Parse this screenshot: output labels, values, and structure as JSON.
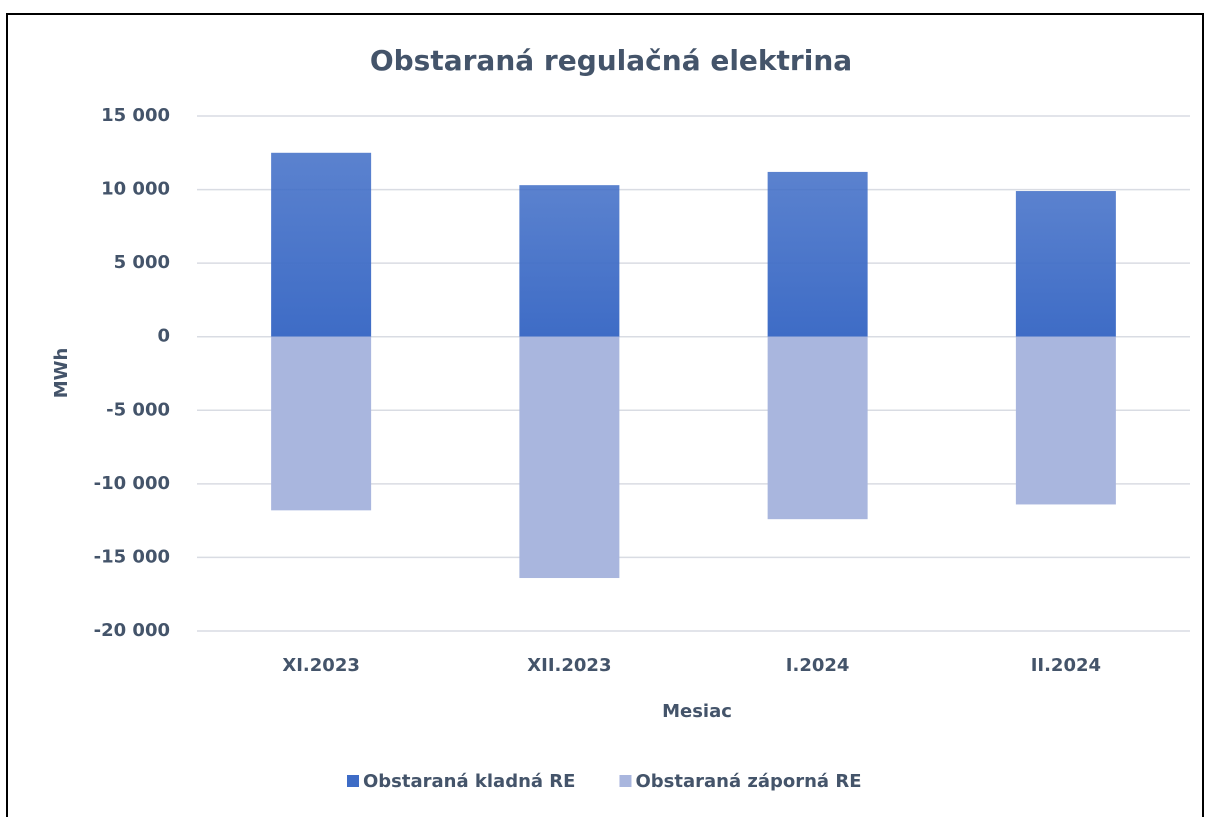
{
  "chart_data": {
    "type": "bar",
    "stacked": true,
    "title": "Obstaraná regulačná elektrina",
    "x_label": "Mesiac",
    "y_label": "MWh",
    "categories": [
      "XI.2023",
      "XII.2023",
      "I.2024",
      "II.2024"
    ],
    "series": [
      {
        "name": "Obstaraná kladná RE",
        "color": "#3e6cc6",
        "values": [
          12500,
          10300,
          11200,
          9900
        ]
      },
      {
        "name": "Obstaraná záporná RE",
        "color": "#a9b6de",
        "values": [
          -11800,
          -16400,
          -12400,
          -11400
        ]
      }
    ],
    "ylim": [
      -20000,
      15000
    ],
    "yticks": [
      {
        "value": -20000,
        "label": "-20 000"
      },
      {
        "value": -15000,
        "label": "-15 000"
      },
      {
        "value": -10000,
        "label": "-10 000"
      },
      {
        "value": -5000,
        "label": "-5 000"
      },
      0,
      {
        "value": 5000,
        "label": "5 000"
      },
      {
        "value": 10000,
        "label": "10 000"
      },
      {
        "value": 15000,
        "label": "15 000"
      }
    ],
    "grid": true,
    "legend": "bottom"
  }
}
